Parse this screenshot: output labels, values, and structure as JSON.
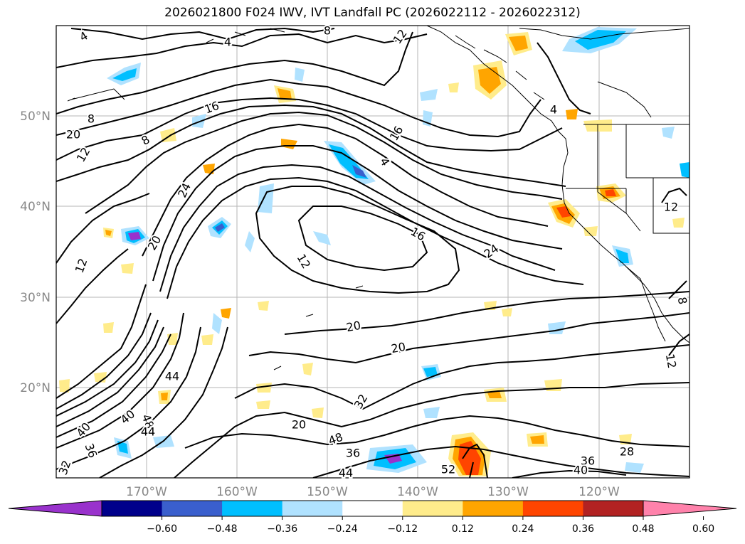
{
  "title": "2026021800 F024 IWV, IVT Landfall PC (2026022112 - 2026022312)",
  "lat_labels": [
    "50°N",
    "40°N",
    "30°N",
    "20°N"
  ],
  "lon_labels": [
    "170°W",
    "160°W",
    "150°W",
    "140°W",
    "130°W",
    "120°W"
  ],
  "contour_labels": [
    "4",
    "4",
    "8",
    "12",
    "8",
    "16",
    "20",
    "12",
    "8",
    "16",
    "24",
    "4",
    "4",
    "12",
    "16",
    "12",
    "20",
    "24",
    "12",
    "20",
    "20",
    "32",
    "44",
    "40",
    "48",
    "44",
    "40",
    "36",
    "36",
    "44",
    "48",
    "20",
    "52",
    "36",
    "40",
    "28",
    "32",
    "12",
    "8"
  ],
  "colorbar": {
    "ticks": [
      "−0.60",
      "−0.48",
      "−0.36",
      "−0.24",
      "−0.12",
      "0.12",
      "0.24",
      "0.36",
      "0.48",
      "0.60"
    ],
    "colors": [
      "#9932cc",
      "#00008b",
      "#3a5fcd",
      "#00bfff",
      "#b0e2ff",
      "#ffffff",
      "#ffec8b",
      "#ffa500",
      "#ff4500",
      "#b22222",
      "#ff82ab"
    ]
  }
}
